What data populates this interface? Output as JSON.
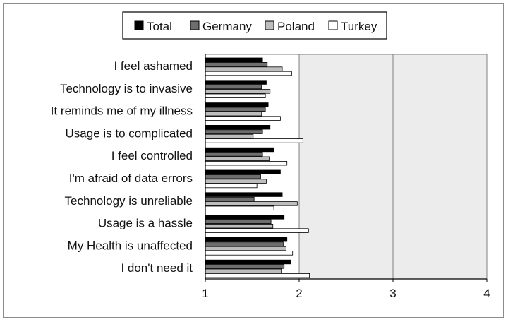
{
  "chart_data": {
    "type": "bar",
    "orientation": "horizontal",
    "categories": [
      "I feel ashamed",
      "Technology is to invasive",
      "It reminds me of my illness",
      "Usage is to complicated",
      "I feel controlled",
      "I'm afraid of data errors",
      "Technology is unreliable",
      "Usage is a hassle",
      "My Health is unaffected",
      "I don't need it"
    ],
    "series": [
      {
        "name": "Total",
        "color": "#000000",
        "values": [
          1.61,
          1.65,
          1.67,
          1.69,
          1.73,
          1.8,
          1.82,
          1.84,
          1.87,
          1.91
        ]
      },
      {
        "name": "Germany",
        "color": "#6e6e6e",
        "values": [
          1.66,
          1.6,
          1.64,
          1.61,
          1.61,
          1.59,
          1.52,
          1.7,
          1.83,
          1.84
        ]
      },
      {
        "name": "Poland",
        "color": "#bdbdbd",
        "values": [
          1.82,
          1.69,
          1.6,
          1.51,
          1.68,
          1.65,
          1.98,
          1.72,
          1.86,
          1.81
        ]
      },
      {
        "name": "Turkey",
        "color": "#ffffff",
        "values": [
          1.92,
          1.64,
          1.8,
          2.04,
          1.87,
          1.55,
          1.73,
          2.1,
          1.93,
          2.11
        ]
      }
    ],
    "xlim": [
      1,
      4
    ],
    "xticks": [
      "1",
      "2",
      "3",
      "4"
    ],
    "grid": "vertical",
    "legend_position": "top"
  }
}
